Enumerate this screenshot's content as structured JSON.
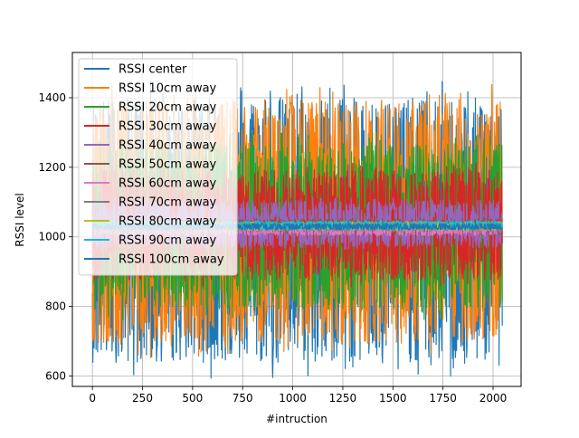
{
  "chart_data": {
    "type": "line",
    "title": "",
    "xlabel": "#intruction",
    "ylabel": "RSSI level",
    "xlim": [
      -100,
      2140
    ],
    "ylim": [
      570,
      1530
    ],
    "x_ticks": [
      0,
      250,
      500,
      750,
      1000,
      1250,
      1500,
      1750,
      2000
    ],
    "y_ticks": [
      600,
      800,
      1000,
      1200,
      1400
    ],
    "grid": true,
    "legend_position": "upper-left",
    "n_points": 2048,
    "x_range": [
      0,
      2047
    ],
    "series": [
      {
        "name": "RSSI center",
        "color": "#1f77b4",
        "center": 1030,
        "min": 585,
        "max": 1450
      },
      {
        "name": "RSSI 10cm away",
        "color": "#ff7f0e",
        "center": 1030,
        "min": 650,
        "max": 1445
      },
      {
        "name": "RSSI 20cm away",
        "color": "#2ca02c",
        "center": 1030,
        "min": 760,
        "max": 1300
      },
      {
        "name": "RSSI 30cm away",
        "color": "#d62728",
        "center": 1030,
        "min": 855,
        "max": 1215
      },
      {
        "name": "RSSI 40cm away",
        "color": "#9467bd",
        "center": 1030,
        "min": 960,
        "max": 1115
      },
      {
        "name": "RSSI 50cm away",
        "color": "#8c564b",
        "center": 1030,
        "min": 1005,
        "max": 1055
      },
      {
        "name": "RSSI 60cm away",
        "color": "#e377c2",
        "center": 1022,
        "min": 1002,
        "max": 1045
      },
      {
        "name": "RSSI 70cm away",
        "color": "#7f7f7f",
        "center": 1028,
        "min": 1015,
        "max": 1042
      },
      {
        "name": "RSSI 80cm away",
        "color": "#bcbd22",
        "center": 1030,
        "min": 1018,
        "max": 1045
      },
      {
        "name": "RSSI 90cm away",
        "color": "#17becf",
        "center": 1030,
        "min": 1020,
        "max": 1048
      },
      {
        "name": "RSSI 100cm away",
        "color": "#1f77b4",
        "center": 1028,
        "min": 1020,
        "max": 1040
      }
    ]
  }
}
